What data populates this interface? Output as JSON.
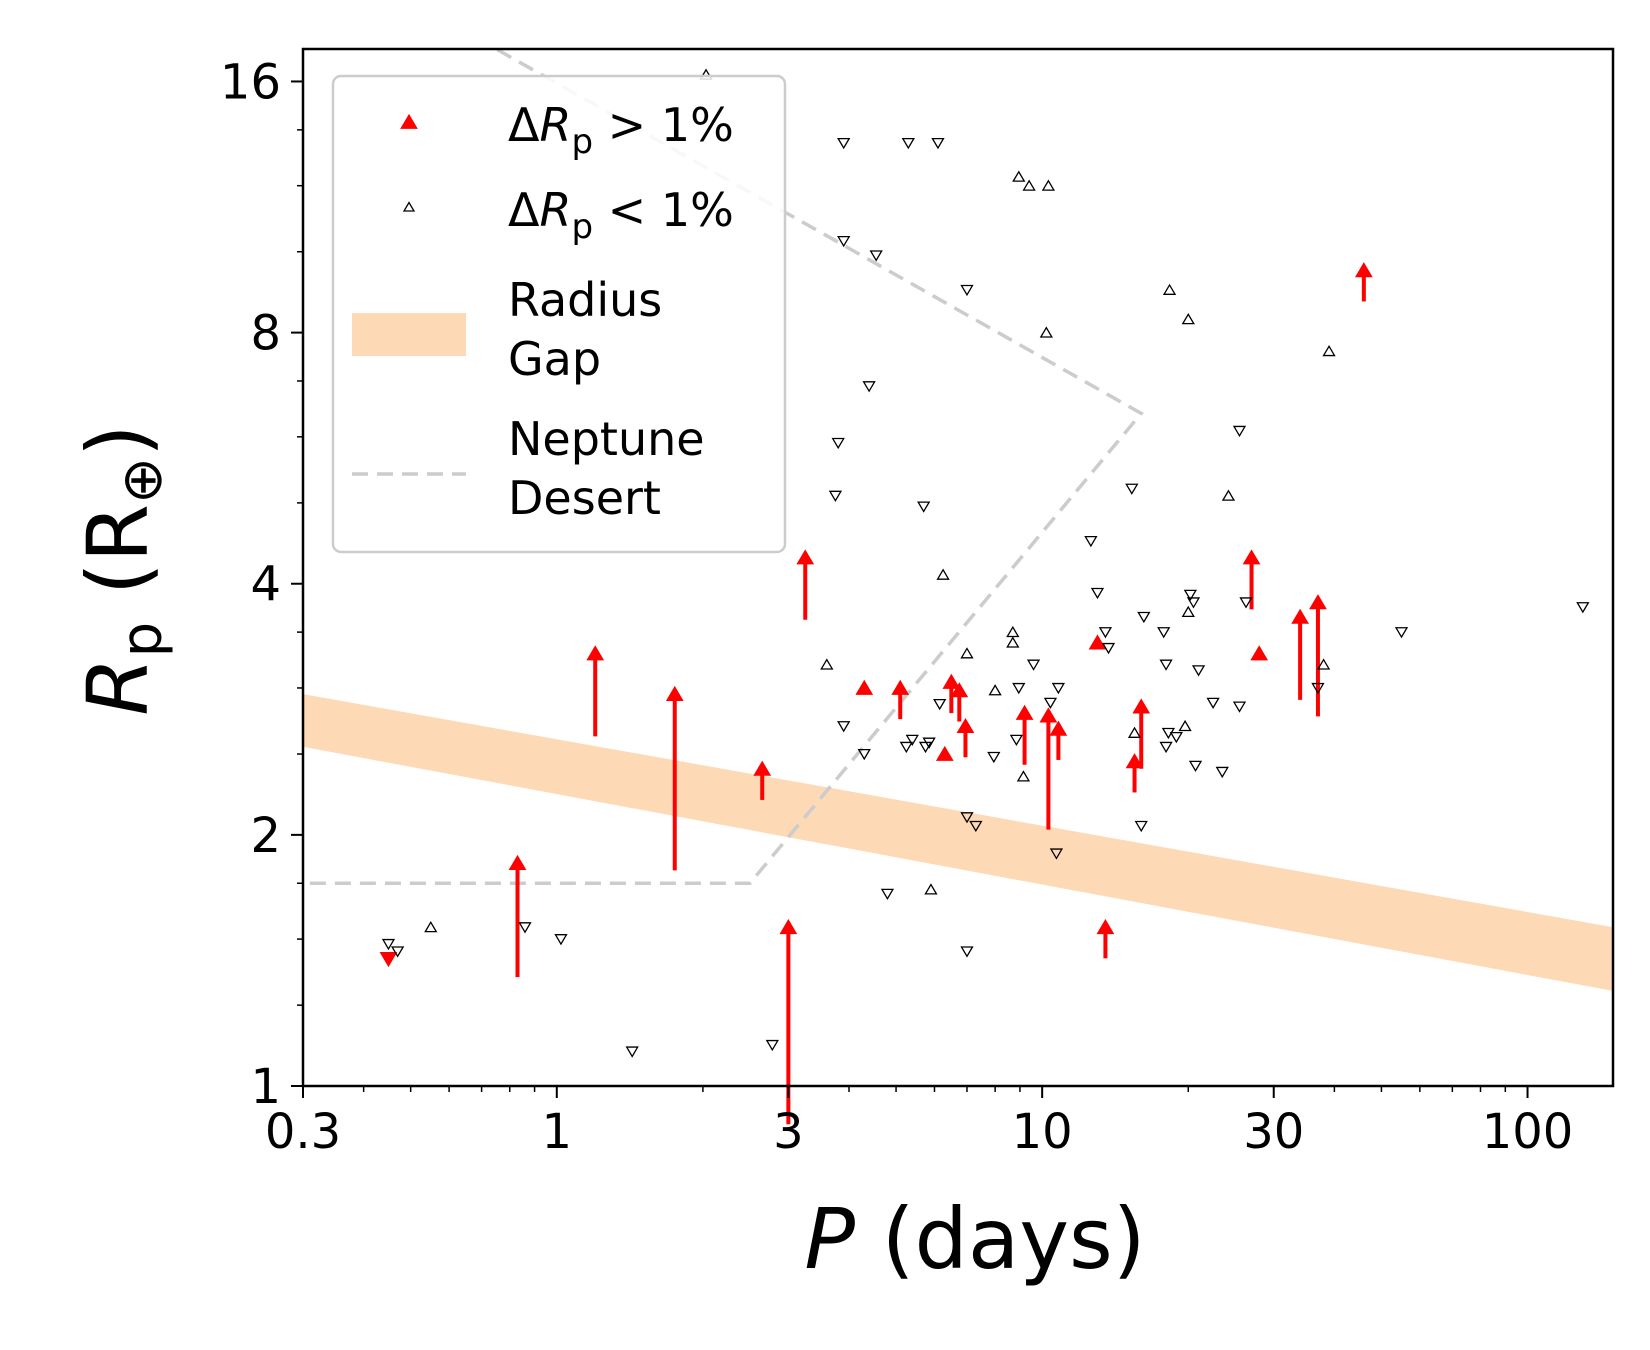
{
  "chart_data": {
    "type": "scatter",
    "x_scale": "log",
    "y_scale": "log",
    "xlim": [
      0.3,
      150
    ],
    "ylim": [
      1,
      17.5
    ],
    "x_ticks": [
      {
        "value": 0.3,
        "label": "0.3"
      },
      {
        "value": 1,
        "label": "1"
      },
      {
        "value": 3,
        "label": "3"
      },
      {
        "value": 10,
        "label": "10"
      },
      {
        "value": 30,
        "label": "30"
      },
      {
        "value": 100,
        "label": "100"
      }
    ],
    "y_ticks": [
      {
        "value": 1,
        "label": "1"
      },
      {
        "value": 2,
        "label": "2"
      },
      {
        "value": 4,
        "label": "4"
      },
      {
        "value": 8,
        "label": "8"
      },
      {
        "value": 16,
        "label": "16"
      }
    ],
    "xlabel": {
      "italic": "P",
      "rest": " (days)"
    },
    "ylabel": {
      "italic": "R",
      "sub": "p",
      "rest": " (R",
      "earth": "⊕",
      "close": ")"
    },
    "grid": false,
    "legend": {
      "placement": "top-left",
      "entries": [
        {
          "kind": "marker",
          "color": "#ff0000",
          "label_prefix": "Δ",
          "label_italic": "R",
          "label_sub": "p",
          "label_suffix": " > 1%"
        },
        {
          "kind": "marker",
          "color": "#000000",
          "label_prefix": "Δ",
          "label_italic": "R",
          "label_sub": "p",
          "label_suffix": " < 1%"
        },
        {
          "kind": "band",
          "color": "#fdd9b5",
          "lines": [
            "Radius",
            "Gap"
          ]
        },
        {
          "kind": "dashed",
          "color": "#cccccc",
          "lines": [
            "Neptune",
            "Desert"
          ]
        }
      ]
    },
    "radius_gap_band": {
      "color": "#fdd9b5",
      "upper": [
        [
          0.3,
          2.95
        ],
        [
          150,
          1.55
        ]
      ],
      "lower": [
        [
          0.3,
          2.55
        ],
        [
          150,
          1.3
        ]
      ]
    },
    "neptune_desert": {
      "color": "#cccccc",
      "path": [
        [
          0.31,
          1.75
        ],
        [
          2.5,
          1.75
        ],
        [
          16,
          6.4
        ],
        [
          0.75,
          17.5
        ]
      ]
    },
    "series": [
      {
        "name": "ΔRp > 1%",
        "color": "#ff0000",
        "points": [
          {
            "x": 0.45,
            "y": 1.42,
            "dir": "down",
            "arrow": 0
          },
          {
            "x": 0.83,
            "y": 1.85,
            "dir": "up",
            "arrow": 0.11
          },
          {
            "x": 1.2,
            "y": 3.3,
            "dir": "up",
            "arrow": 0.08
          },
          {
            "x": 1.75,
            "y": 2.95,
            "dir": "up",
            "arrow": 0.17
          },
          {
            "x": 2.65,
            "y": 2.4,
            "dir": "up",
            "arrow": 0.03
          },
          {
            "x": 3.0,
            "y": 1.55,
            "dir": "up",
            "arrow": 0.19
          },
          {
            "x": 3.25,
            "y": 4.3,
            "dir": "up",
            "arrow": 0.06
          },
          {
            "x": 4.3,
            "y": 3.0,
            "dir": "up",
            "arrow": 0
          },
          {
            "x": 5.1,
            "y": 3.0,
            "dir": "up",
            "arrow": 0.03
          },
          {
            "x": 6.3,
            "y": 2.5,
            "dir": "up",
            "arrow": 0
          },
          {
            "x": 6.5,
            "y": 3.05,
            "dir": "up",
            "arrow": 0.03
          },
          {
            "x": 6.75,
            "y": 2.98,
            "dir": "up",
            "arrow": 0.03
          },
          {
            "x": 6.95,
            "y": 2.7,
            "dir": "up",
            "arrow": 0.03
          },
          {
            "x": 9.2,
            "y": 2.8,
            "dir": "up",
            "arrow": 0.05
          },
          {
            "x": 10.3,
            "y": 2.78,
            "dir": "up",
            "arrow": 0.11
          },
          {
            "x": 10.8,
            "y": 2.68,
            "dir": "up",
            "arrow": 0.03
          },
          {
            "x": 13.0,
            "y": 3.4,
            "dir": "up",
            "arrow": 0
          },
          {
            "x": 13.5,
            "y": 1.55,
            "dir": "up",
            "arrow": 0.03
          },
          {
            "x": 15.5,
            "y": 2.45,
            "dir": "up",
            "arrow": 0.03
          },
          {
            "x": 16.0,
            "y": 2.85,
            "dir": "up",
            "arrow": 0.06
          },
          {
            "x": 27.0,
            "y": 4.3,
            "dir": "up",
            "arrow": 0.05
          },
          {
            "x": 28.0,
            "y": 3.3,
            "dir": "up",
            "arrow": 0
          },
          {
            "x": 34.0,
            "y": 3.65,
            "dir": "up",
            "arrow": 0.08
          },
          {
            "x": 37.0,
            "y": 3.8,
            "dir": "up",
            "arrow": 0.11
          },
          {
            "x": 46.0,
            "y": 9.5,
            "dir": "up",
            "arrow": 0.03
          }
        ]
      },
      {
        "name": "ΔRp < 1%",
        "color": "#000000",
        "points": [
          {
            "x": 0.45,
            "y": 1.48,
            "dir": "down"
          },
          {
            "x": 0.47,
            "y": 1.45,
            "dir": "down"
          },
          {
            "x": 0.55,
            "y": 1.55,
            "dir": "up"
          },
          {
            "x": 0.86,
            "y": 1.55,
            "dir": "down"
          },
          {
            "x": 1.02,
            "y": 1.5,
            "dir": "down"
          },
          {
            "x": 1.43,
            "y": 1.1,
            "dir": "down"
          },
          {
            "x": 2.03,
            "y": 16.3,
            "dir": "up"
          },
          {
            "x": 2.78,
            "y": 1.12,
            "dir": "down"
          },
          {
            "x": 3.6,
            "y": 3.2,
            "dir": "up"
          },
          {
            "x": 3.8,
            "y": 5.9,
            "dir": "down"
          },
          {
            "x": 3.75,
            "y": 5.1,
            "dir": "down"
          },
          {
            "x": 3.9,
            "y": 10.3,
            "dir": "down"
          },
          {
            "x": 3.9,
            "y": 2.7,
            "dir": "down"
          },
          {
            "x": 3.9,
            "y": 13.5,
            "dir": "down"
          },
          {
            "x": 4.3,
            "y": 2.5,
            "dir": "down"
          },
          {
            "x": 4.4,
            "y": 6.9,
            "dir": "down"
          },
          {
            "x": 4.55,
            "y": 9.9,
            "dir": "down"
          },
          {
            "x": 4.8,
            "y": 1.7,
            "dir": "down"
          },
          {
            "x": 5.25,
            "y": 2.55,
            "dir": "down"
          },
          {
            "x": 5.3,
            "y": 13.5,
            "dir": "down"
          },
          {
            "x": 5.4,
            "y": 2.6,
            "dir": "down"
          },
          {
            "x": 5.7,
            "y": 4.95,
            "dir": "down"
          },
          {
            "x": 5.75,
            "y": 2.55,
            "dir": "down"
          },
          {
            "x": 5.85,
            "y": 2.58,
            "dir": "down"
          },
          {
            "x": 5.9,
            "y": 1.72,
            "dir": "up"
          },
          {
            "x": 6.1,
            "y": 13.5,
            "dir": "down"
          },
          {
            "x": 6.15,
            "y": 2.87,
            "dir": "down"
          },
          {
            "x": 6.25,
            "y": 4.1,
            "dir": "up"
          },
          {
            "x": 7.0,
            "y": 3.3,
            "dir": "up"
          },
          {
            "x": 7.0,
            "y": 9.0,
            "dir": "down"
          },
          {
            "x": 7.0,
            "y": 2.1,
            "dir": "down"
          },
          {
            "x": 7.0,
            "y": 1.45,
            "dir": "down"
          },
          {
            "x": 7.3,
            "y": 2.05,
            "dir": "down"
          },
          {
            "x": 7.95,
            "y": 2.48,
            "dir": "down"
          },
          {
            "x": 8.0,
            "y": 2.98,
            "dir": "up"
          },
          {
            "x": 8.7,
            "y": 3.4,
            "dir": "up"
          },
          {
            "x": 8.7,
            "y": 3.5,
            "dir": "up"
          },
          {
            "x": 8.85,
            "y": 2.6,
            "dir": "down"
          },
          {
            "x": 8.95,
            "y": 3.0,
            "dir": "down"
          },
          {
            "x": 8.95,
            "y": 12.3,
            "dir": "up"
          },
          {
            "x": 9.15,
            "y": 2.35,
            "dir": "up"
          },
          {
            "x": 9.4,
            "y": 12.0,
            "dir": "up"
          },
          {
            "x": 9.6,
            "y": 3.2,
            "dir": "down"
          },
          {
            "x": 10.3,
            "y": 12.0,
            "dir": "up"
          },
          {
            "x": 10.2,
            "y": 8.0,
            "dir": "up"
          },
          {
            "x": 10.4,
            "y": 2.88,
            "dir": "down"
          },
          {
            "x": 10.7,
            "y": 1.9,
            "dir": "down"
          },
          {
            "x": 10.8,
            "y": 3.0,
            "dir": "down"
          },
          {
            "x": 12.6,
            "y": 4.5,
            "dir": "down"
          },
          {
            "x": 13.0,
            "y": 3.9,
            "dir": "down"
          },
          {
            "x": 13.5,
            "y": 3.5,
            "dir": "down"
          },
          {
            "x": 13.7,
            "y": 3.35,
            "dir": "down"
          },
          {
            "x": 15.3,
            "y": 5.2,
            "dir": "down"
          },
          {
            "x": 15.5,
            "y": 2.65,
            "dir": "up"
          },
          {
            "x": 16.0,
            "y": 2.05,
            "dir": "down"
          },
          {
            "x": 16.2,
            "y": 3.65,
            "dir": "down"
          },
          {
            "x": 17.8,
            "y": 3.5,
            "dir": "down"
          },
          {
            "x": 18.0,
            "y": 3.2,
            "dir": "down"
          },
          {
            "x": 18.0,
            "y": 2.55,
            "dir": "down"
          },
          {
            "x": 18.2,
            "y": 2.65,
            "dir": "down"
          },
          {
            "x": 18.3,
            "y": 9.0,
            "dir": "up"
          },
          {
            "x": 18.9,
            "y": 2.62,
            "dir": "down"
          },
          {
            "x": 19.7,
            "y": 2.7,
            "dir": "up"
          },
          {
            "x": 20.0,
            "y": 3.7,
            "dir": "up"
          },
          {
            "x": 20.0,
            "y": 8.3,
            "dir": "up"
          },
          {
            "x": 20.2,
            "y": 3.88,
            "dir": "down"
          },
          {
            "x": 20.5,
            "y": 3.8,
            "dir": "down"
          },
          {
            "x": 20.7,
            "y": 2.42,
            "dir": "down"
          },
          {
            "x": 21.0,
            "y": 3.15,
            "dir": "down"
          },
          {
            "x": 22.5,
            "y": 2.88,
            "dir": "down"
          },
          {
            "x": 23.5,
            "y": 2.38,
            "dir": "down"
          },
          {
            "x": 24.2,
            "y": 5.1,
            "dir": "up"
          },
          {
            "x": 25.5,
            "y": 2.85,
            "dir": "down"
          },
          {
            "x": 25.5,
            "y": 6.1,
            "dir": "down"
          },
          {
            "x": 26.3,
            "y": 3.8,
            "dir": "down"
          },
          {
            "x": 37.0,
            "y": 3.0,
            "dir": "down"
          },
          {
            "x": 38.0,
            "y": 3.2,
            "dir": "up"
          },
          {
            "x": 39.0,
            "y": 7.6,
            "dir": "up"
          },
          {
            "x": 55.0,
            "y": 3.5,
            "dir": "down"
          },
          {
            "x": 130.0,
            "y": 3.75,
            "dir": "down"
          }
        ]
      }
    ]
  }
}
